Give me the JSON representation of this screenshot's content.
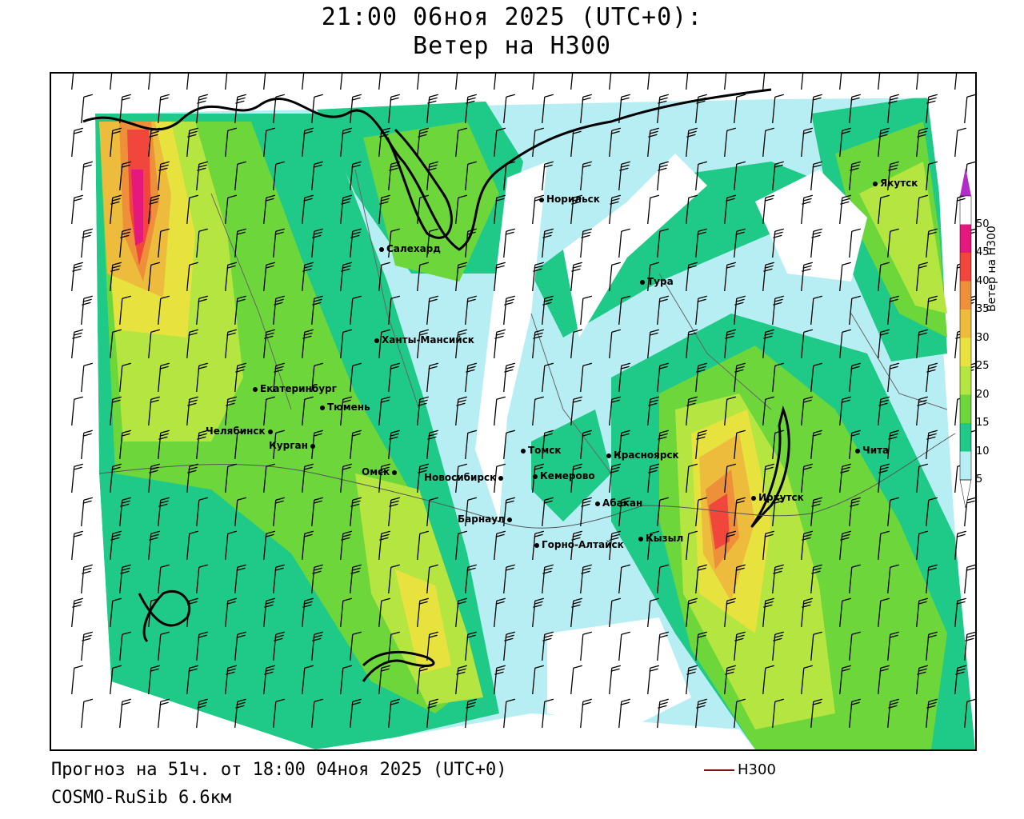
{
  "header": {
    "title_line1": "21:00 06ноя 2025 (UTC+0):",
    "title_line2": "Ветер на H300"
  },
  "colorbar": {
    "title": "Ветер на H300",
    "ticks": [
      "5",
      "10",
      "15",
      "20",
      "25",
      "30",
      "35",
      "40",
      "45",
      "50"
    ],
    "colors": [
      "#ffffff",
      "#b6eef4",
      "#1fc987",
      "#6cd63b",
      "#b5e540",
      "#e8e23f",
      "#edbc3d",
      "#ee8f3a",
      "#f0463c",
      "#e5187e",
      "#b02bc8"
    ]
  },
  "cities": [
    {
      "name": "Норильск"
    },
    {
      "name": "Якутск"
    },
    {
      "name": "Салехард"
    },
    {
      "name": "Тура"
    },
    {
      "name": "Ханты-Мансийск"
    },
    {
      "name": "Екатеринбург"
    },
    {
      "name": "Тюмень"
    },
    {
      "name": "Челябинск"
    },
    {
      "name": "Курган"
    },
    {
      "name": "Омск"
    },
    {
      "name": "Новосибирск"
    },
    {
      "name": "Томск"
    },
    {
      "name": "Кемерово"
    },
    {
      "name": "Красноярск"
    },
    {
      "name": "Абакан"
    },
    {
      "name": "Барнаул"
    },
    {
      "name": "Горно-Алтайск"
    },
    {
      "name": "Кызыл"
    },
    {
      "name": "Иркутск"
    },
    {
      "name": "Чита"
    }
  ],
  "footer": {
    "forecast": "Прогноз на 51ч. от 18:00 04ноя 2025 (UTC+0)",
    "model": "COSMO-RuSib 6.6км",
    "legend_label": "H300"
  }
}
